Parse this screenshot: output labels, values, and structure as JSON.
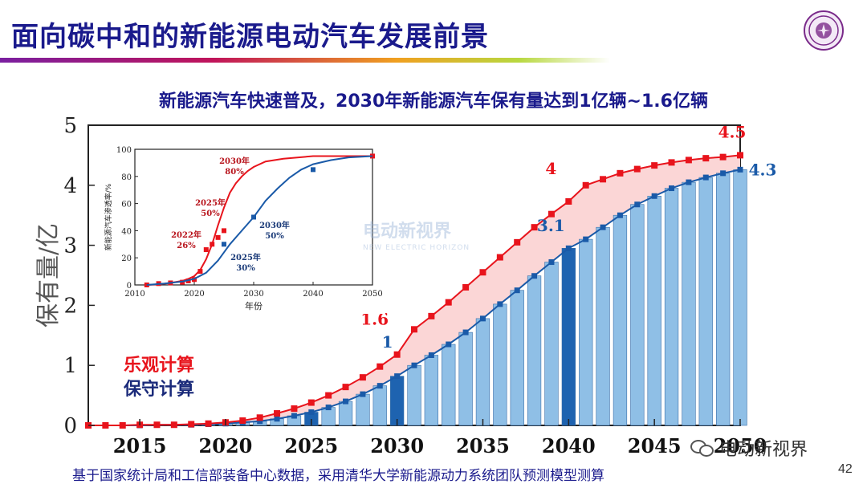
{
  "title": "面向碳中和的新能源电动汽车发展前景",
  "subtitle": "新能源汽车快速普及，2030年新能源汽车保有量达到1亿辆~1.6亿辆",
  "footer": "基于国家统计局和工信部装备中心数据，采用清华大学新能源动力系统团队预测模型测算",
  "page_number": "42",
  "watermark": "电动新视界",
  "center_watermark": {
    "main": "电动新视界",
    "sub": "NEW ELECTRIC HORIZON"
  },
  "colors": {
    "title": "#1a1a8c",
    "optimistic": "#e8141c",
    "conservative_bar": "#8fbfe6",
    "highlight_bar": "#1e63b0",
    "conservative_line": "#1a5aa8",
    "band": "#fbd6d6"
  },
  "icons": {
    "logo": "university-seal-icon",
    "watermark": "wechat-icon"
  },
  "chart_data": [
    {
      "type": "bar",
      "title": "",
      "xlabel": "",
      "ylabel": "保有量/亿",
      "xlim": [
        2012,
        2050
      ],
      "ylim": [
        0,
        5
      ],
      "x_ticks": [
        2015,
        2020,
        2025,
        2030,
        2035,
        2040,
        2045,
        2050
      ],
      "y_ticks": [
        0,
        1,
        2,
        3,
        4,
        5
      ],
      "x": [
        2012,
        2013,
        2014,
        2015,
        2016,
        2017,
        2018,
        2019,
        2020,
        2021,
        2022,
        2023,
        2024,
        2025,
        2026,
        2027,
        2028,
        2029,
        2030,
        2031,
        2032,
        2033,
        2034,
        2035,
        2036,
        2037,
        2038,
        2039,
        2040,
        2041,
        2042,
        2043,
        2044,
        2045,
        2046,
        2047,
        2048,
        2049,
        2050
      ],
      "highlight_years": [
        2025,
        2030,
        2040
      ],
      "legend": [
        "乐观计算",
        "保守计算"
      ],
      "legend_position": "middle-left",
      "series": [
        {
          "name": "乐观计算",
          "style": "line-square-markers",
          "values": [
            0.0,
            0.0,
            0.0,
            0.01,
            0.01,
            0.01,
            0.02,
            0.03,
            0.05,
            0.08,
            0.13,
            0.2,
            0.28,
            0.38,
            0.5,
            0.64,
            0.8,
            0.98,
            1.18,
            1.6,
            1.82,
            2.05,
            2.3,
            2.55,
            2.8,
            3.05,
            3.3,
            3.52,
            3.73,
            4.0,
            4.1,
            4.2,
            4.27,
            4.33,
            4.38,
            4.42,
            4.45,
            4.47,
            4.5
          ]
        },
        {
          "name": "保守计算",
          "style": "bars-with-line",
          "values": [
            0.0,
            0.0,
            0.0,
            0.0,
            0.01,
            0.01,
            0.01,
            0.02,
            0.03,
            0.05,
            0.07,
            0.11,
            0.16,
            0.22,
            0.3,
            0.4,
            0.52,
            0.66,
            0.82,
            1.0,
            1.17,
            1.35,
            1.55,
            1.78,
            2.02,
            2.25,
            2.49,
            2.72,
            2.95,
            3.1,
            3.3,
            3.5,
            3.68,
            3.82,
            3.95,
            4.05,
            4.13,
            4.2,
            4.26
          ]
        }
      ],
      "annotations": [
        {
          "text": "1.6",
          "series": "乐观计算",
          "x": 2030,
          "y": 1.6
        },
        {
          "text": "4",
          "series": "乐观计算",
          "x": 2040,
          "y": 4.0
        },
        {
          "text": "4.5",
          "series": "乐观计算",
          "x": 2050,
          "y": 4.5
        },
        {
          "text": "1",
          "series": "保守计算",
          "x": 2030,
          "y": 1.0
        },
        {
          "text": "3.1",
          "series": "保守计算",
          "x": 2040,
          "y": 3.1
        },
        {
          "text": "4.3",
          "series": "保守计算",
          "x": 2050,
          "y": 4.3
        }
      ]
    },
    {
      "type": "line",
      "title": "",
      "xlabel": "年份",
      "ylabel": "新能源汽车渗透率/%",
      "xlim": [
        2010,
        2050
      ],
      "ylim": [
        0,
        100
      ],
      "x_ticks": [
        2010,
        2020,
        2030,
        2040,
        2050
      ],
      "y_ticks": [
        0,
        20,
        40,
        60,
        80,
        100
      ],
      "series": [
        {
          "name": "乐观计算",
          "curve_x": [
            2012,
            2014,
            2016,
            2018,
            2019,
            2020,
            2021,
            2022,
            2023,
            2024,
            2025,
            2026,
            2027,
            2028,
            2029,
            2030,
            2032,
            2035,
            2040,
            2045,
            2050
          ],
          "curve_y": [
            0,
            0.5,
            1.5,
            3,
            4.5,
            6.5,
            11,
            19,
            30,
            44,
            57,
            68,
            75,
            80,
            84,
            87,
            91,
            93,
            95,
            95,
            95
          ],
          "points_x": [
            2012,
            2014,
            2016,
            2018,
            2019,
            2020,
            2021,
            2022,
            2023,
            2024,
            2025,
            2050
          ],
          "points_y": [
            0,
            1,
            1.5,
            2,
            3,
            4,
            10,
            26,
            30,
            35,
            40,
            95
          ]
        },
        {
          "name": "保守计算",
          "curve_x": [
            2012,
            2015,
            2018,
            2020,
            2022,
            2024,
            2025,
            2026,
            2028,
            2030,
            2032,
            2034,
            2036,
            2038,
            2040,
            2043,
            2046,
            2050
          ],
          "curve_y": [
            0,
            1,
            2.5,
            4.5,
            9,
            18,
            24,
            30,
            40,
            50,
            62,
            71,
            79,
            85,
            89,
            92,
            94,
            95
          ],
          "points_x": [
            2025,
            2030,
            2040
          ],
          "points_y": [
            30,
            50,
            85
          ]
        }
      ],
      "annotations": [
        {
          "text": "2030年",
          "value": "80%",
          "series": "乐观计算"
        },
        {
          "text": "2025年",
          "value": "50%",
          "series": "乐观计算"
        },
        {
          "text": "2022年",
          "value": "26%",
          "series": "乐观计算"
        },
        {
          "text": "2030年",
          "value": "50%",
          "series": "保守计算"
        },
        {
          "text": "2025年",
          "value": "30%",
          "series": "保守计算"
        }
      ]
    }
  ]
}
